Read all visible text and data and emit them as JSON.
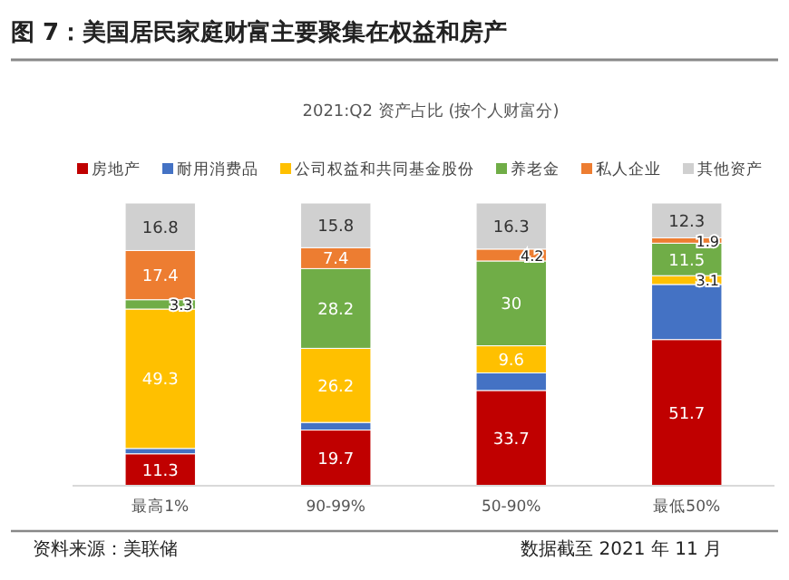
{
  "chart_data": {
    "type": "bar",
    "stacked": true,
    "title": "图 7：美国居民家庭财富主要聚集在权益和房产",
    "subtitle": "2021:Q2 资产占比 (按个人财富分)",
    "categories": [
      "最高1%",
      "90-99%",
      "50-90%",
      "最低50%"
    ],
    "legend": "top",
    "series": [
      {
        "name": "房地产",
        "color": "#c00000",
        "values": [
          11.3,
          19.7,
          33.7,
          51.7
        ],
        "value_labels": [
          "11.3",
          "19.7",
          "33.7",
          "51.7"
        ]
      },
      {
        "name": "耐用消费品",
        "color": "#4472c4",
        "values": [
          1.9,
          2.7,
          6.2,
          19.5
        ],
        "value_labels": [
          null,
          null,
          null,
          null
        ]
      },
      {
        "name": "公司权益和共同基金股份",
        "color": "#ffc000",
        "values": [
          49.3,
          26.2,
          9.6,
          3.1
        ],
        "value_labels": [
          "49.3",
          "26.2",
          "9.6",
          "3.1"
        ]
      },
      {
        "name": "养老金",
        "color": "#70ad47",
        "values": [
          3.3,
          28.2,
          30,
          11.5
        ],
        "value_labels": [
          "3.3",
          "28.2",
          "30",
          "11.5"
        ]
      },
      {
        "name": "私人企业",
        "color": "#ed7d31",
        "values": [
          17.4,
          7.4,
          4.2,
          1.9
        ],
        "value_labels": [
          "17.4",
          "7.4",
          "4.2",
          "1.9"
        ]
      },
      {
        "name": "其他资产",
        "color": "#d0d0d0",
        "values": [
          16.8,
          15.8,
          16.3,
          12.3
        ],
        "value_labels": [
          "16.8",
          "15.8",
          "16.3",
          "12.3"
        ]
      }
    ],
    "annotations": [
      "资料来源：美联储",
      "数据截至 2021 年 11 月"
    ]
  }
}
